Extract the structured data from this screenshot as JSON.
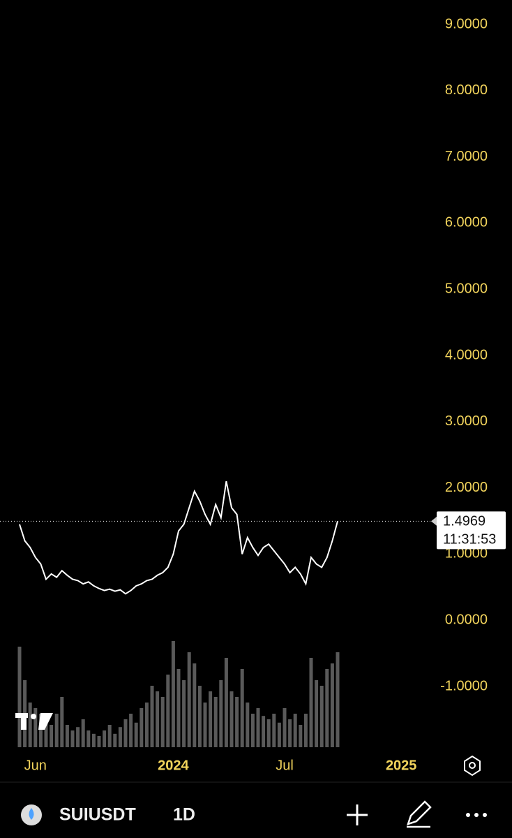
{
  "chart_data": {
    "type": "line",
    "categories": [
      null,
      null,
      null,
      "Jun",
      null,
      null,
      null,
      null,
      null,
      null,
      null,
      null,
      null,
      null,
      null,
      null,
      null,
      null,
      null,
      null,
      null,
      null,
      null,
      null,
      null,
      null,
      null,
      null,
      null,
      "2024",
      null,
      null,
      null,
      null,
      null,
      null,
      null,
      null,
      null,
      null,
      null,
      null,
      null,
      null,
      null,
      null,
      null,
      null,
      null,
      null,
      "Jul",
      null,
      null,
      null,
      null,
      null,
      null,
      null,
      null,
      null,
      null,
      null,
      null,
      null,
      null,
      null,
      null,
      null,
      null,
      null,
      null,
      null,
      "2025",
      null,
      null,
      null,
      null,
      null
    ],
    "series": [
      {
        "color": "#ffffff",
        "values": [
          1.45,
          1.2,
          1.1,
          0.95,
          0.85,
          0.62,
          0.7,
          0.65,
          0.75,
          0.68,
          0.62,
          0.6,
          0.55,
          0.58,
          0.52,
          0.48,
          0.45,
          0.47,
          0.44,
          0.46,
          0.4,
          0.45,
          0.52,
          0.55,
          0.6,
          0.62,
          0.68,
          0.72,
          0.8,
          1.0,
          1.35,
          1.45,
          1.7,
          1.95,
          1.8,
          1.6,
          1.45,
          1.75,
          1.55,
          2.1,
          1.7,
          1.6,
          1.0,
          1.25,
          1.1,
          0.98,
          1.1,
          1.15,
          1.05,
          0.95,
          0.85,
          0.72,
          0.8,
          0.7,
          0.55,
          0.95,
          0.85,
          0.8,
          0.95,
          1.2,
          1.4969,
          null,
          null,
          null,
          null,
          null,
          null,
          null,
          null,
          null,
          null,
          null,
          null,
          null,
          null,
          null,
          null,
          null
        ]
      }
    ],
    "volume": {
      "color": "#5a5a5a",
      "values": [
        90,
        60,
        40,
        35,
        30,
        25,
        20,
        30,
        45,
        20,
        15,
        18,
        25,
        15,
        12,
        10,
        15,
        20,
        12,
        18,
        25,
        30,
        22,
        35,
        40,
        55,
        50,
        45,
        65,
        95,
        70,
        60,
        85,
        75,
        55,
        40,
        50,
        45,
        60,
        80,
        50,
        45,
        70,
        40,
        30,
        35,
        28,
        25,
        30,
        22,
        35,
        25,
        30,
        20,
        30,
        80,
        60,
        55,
        70,
        75,
        85,
        null,
        null,
        null,
        null,
        null,
        null,
        null,
        null,
        null,
        null,
        null,
        null,
        null,
        null,
        null,
        null,
        null
      ]
    },
    "ylim": [
      -1.97,
      9.37
    ],
    "yticks": [
      {
        "value": -1,
        "label": "-1.0000"
      },
      {
        "value": 0,
        "label": "0.0000"
      },
      {
        "value": 1,
        "label": "1.0000"
      },
      {
        "value": 2,
        "label": "2.0000"
      },
      {
        "value": 3,
        "label": "3.0000"
      },
      {
        "value": 4,
        "label": "4.0000"
      },
      {
        "value": 5,
        "label": "5.0000"
      },
      {
        "value": 6,
        "label": "6.0000"
      },
      {
        "value": 7,
        "label": "7.0000"
      },
      {
        "value": 8,
        "label": "8.0000"
      },
      {
        "value": 9,
        "label": "9.0000"
      }
    ],
    "last_price": 1.4969,
    "countdown": "11:31:53",
    "symbol": "SUIUSDT",
    "interval": "1D"
  }
}
